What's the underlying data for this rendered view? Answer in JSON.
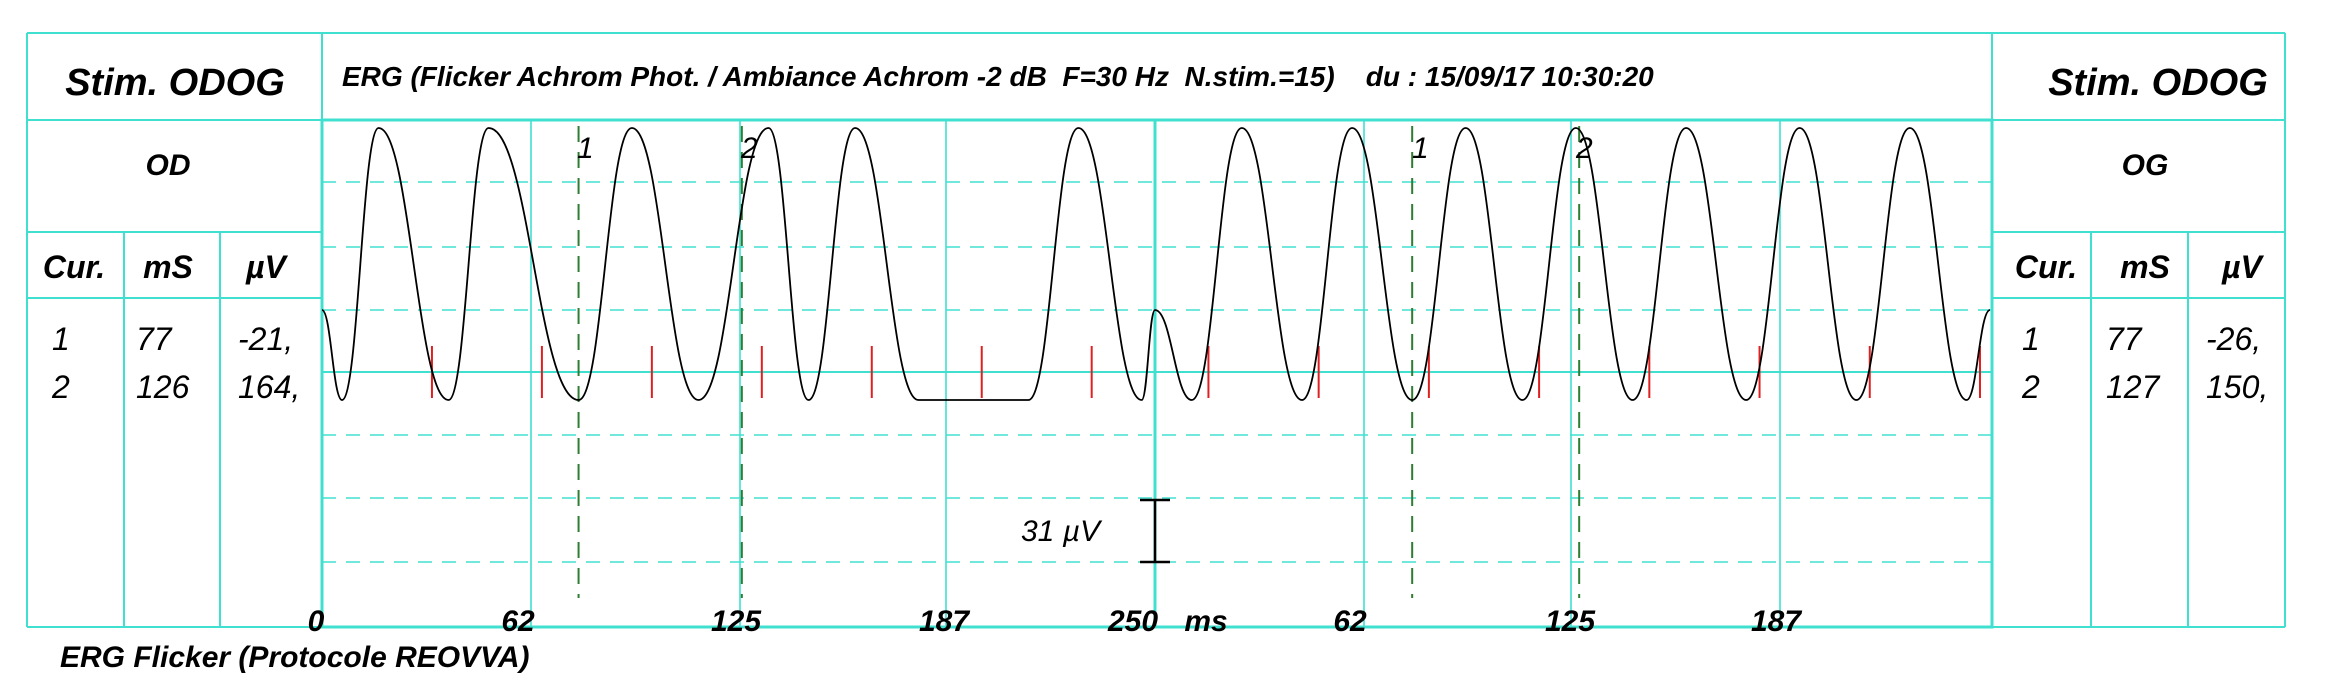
{
  "header": {
    "left_title": "Stim. ODOG",
    "right_title": "Stim. ODOG",
    "center_title": "ERG (Flicker Achrom Phot. / Ambiance Achrom -2 dB  F=30 Hz  N.stim.=15)    du : 15/09/17 10:30:20"
  },
  "left_panel": {
    "eye": "OD",
    "columns": [
      "Cur.",
      "mS",
      "µV"
    ],
    "rows": [
      {
        "cur": "1",
        "ms": "77",
        "uv": "-21,"
      },
      {
        "cur": "2",
        "ms": "126",
        "uv": "164,"
      }
    ]
  },
  "right_panel": {
    "eye": "OG",
    "columns": [
      "Cur.",
      "mS",
      "µV"
    ],
    "rows": [
      {
        "cur": "1",
        "ms": "77",
        "uv": "-26,"
      },
      {
        "cur": "2",
        "ms": "127",
        "uv": "150,"
      }
    ]
  },
  "footer": {
    "caption": "ERG Flicker (Protocole REOVVA)"
  },
  "colors": {
    "grid": "#40e0d0",
    "grid_dashed": "#40e0d0",
    "trace": "#000000",
    "stimulus_marker": "#e02020",
    "cursor_line": "#2e7d32"
  },
  "chart_data": {
    "type": "line",
    "x_unit": "ms",
    "x_tick_labels": [
      "0",
      "62",
      "125",
      "187",
      "250",
      "ms",
      "62",
      "125",
      "187"
    ],
    "scale_bar_label": "31 µV",
    "series": [
      {
        "eye": "OD",
        "x_range_ms": [
          0,
          250
        ],
        "peak_times_ms": [
          17,
          50,
          93,
          134,
          160,
          227
        ],
        "trough_times_ms": [
          6,
          38,
          77,
          113,
          146,
          179,
          212,
          246
        ],
        "stimulus_times_ms": [
          33,
          66,
          99,
          132,
          165,
          198,
          231
        ],
        "cursors": [
          {
            "label": "1",
            "time_ms": 77,
            "amplitude_uv": -21
          },
          {
            "label": "2",
            "time_ms": 126,
            "amplitude_uv": 164
          }
        ]
      },
      {
        "eye": "OG",
        "x_range_ms": [
          0,
          250
        ],
        "peak_times_ms": [
          26,
          59,
          93,
          126,
          159,
          193,
          226
        ],
        "trough_times_ms": [
          11,
          44,
          77,
          110,
          143,
          177,
          210,
          243
        ],
        "stimulus_times_ms": [
          16,
          49,
          82,
          115,
          148,
          181,
          214,
          247
        ],
        "cursors": [
          {
            "label": "1",
            "time_ms": 77,
            "amplitude_uv": -26
          },
          {
            "label": "2",
            "time_ms": 127,
            "amplitude_uv": 150
          }
        ]
      }
    ]
  }
}
